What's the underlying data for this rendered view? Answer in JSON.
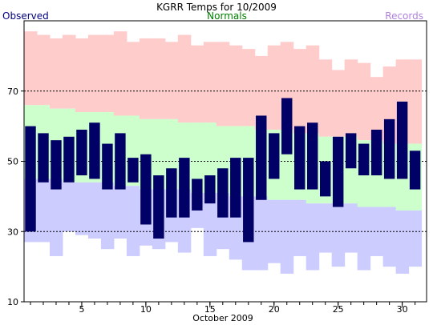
{
  "chart_data": {
    "type": "bar",
    "title": "KGRR Temps for 10/2009",
    "xlabel": "October 2009",
    "ylabel": "",
    "legend": [
      {
        "name": "Observed",
        "color": "#000080",
        "position": "top-left"
      },
      {
        "name": "Normals",
        "color": "#008000",
        "position": "top-center"
      },
      {
        "name": "Records",
        "color": "#b080e0",
        "position": "top-right"
      }
    ],
    "xlim": [
      0.5,
      31.9
    ],
    "ylim": [
      10,
      90
    ],
    "x_ticks": [
      5,
      10,
      15,
      20,
      25,
      30
    ],
    "y_ticks": [
      10,
      30,
      50,
      70
    ],
    "y_gridlines": [
      30,
      50,
      70
    ],
    "days": [
      1,
      2,
      3,
      4,
      5,
      6,
      7,
      8,
      9,
      10,
      11,
      12,
      13,
      14,
      15,
      16,
      17,
      18,
      19,
      20,
      21,
      22,
      23,
      24,
      25,
      26,
      27,
      28,
      29,
      30,
      31
    ],
    "record_high": [
      87,
      86,
      85,
      86,
      85,
      86,
      86,
      87,
      84,
      85,
      85,
      84,
      86,
      83,
      84,
      84,
      83,
      82,
      80,
      83,
      84,
      82,
      83,
      79,
      76,
      79,
      78,
      74,
      77,
      79,
      79
    ],
    "normal_high": [
      66,
      66,
      65,
      65,
      64,
      64,
      64,
      63,
      63,
      62,
      62,
      62,
      61,
      61,
      61,
      60,
      60,
      60,
      59,
      59,
      59,
      58,
      58,
      57,
      57,
      57,
      56,
      56,
      55,
      55,
      55
    ],
    "normal_low": [
      45,
      45,
      45,
      44,
      44,
      44,
      44,
      43,
      43,
      42,
      42,
      42,
      42,
      41,
      41,
      41,
      40,
      40,
      40,
      39,
      39,
      39,
      38,
      38,
      38,
      38,
      37,
      37,
      37,
      36,
      36
    ],
    "record_low": [
      27,
      27,
      23,
      30,
      29,
      28,
      25,
      28,
      23,
      26,
      25,
      27,
      24,
      31,
      23,
      25,
      22,
      19,
      19,
      21,
      18,
      23,
      19,
      24,
      20,
      24,
      19,
      23,
      20,
      18,
      20
    ],
    "observed_high": [
      60,
      58,
      56,
      57,
      59,
      61,
      55,
      58,
      51,
      52,
      46,
      48,
      51,
      45,
      46,
      48,
      51,
      51,
      63,
      58,
      68,
      60,
      61,
      50,
      57,
      58,
      55,
      59,
      62,
      67,
      53
    ],
    "observed_low": [
      30,
      44,
      42,
      44,
      46,
      45,
      42,
      42,
      44,
      32,
      28,
      34,
      34,
      36,
      38,
      34,
      34,
      27,
      39,
      45,
      52,
      42,
      42,
      40,
      37,
      48,
      46,
      46,
      45,
      45,
      42
    ],
    "colors": {
      "record_band": "#ffcccc",
      "normal_band": "#ccffcc",
      "low_band": "#ccccff",
      "observed_bar": "#000066",
      "gridline": "#000000"
    }
  }
}
